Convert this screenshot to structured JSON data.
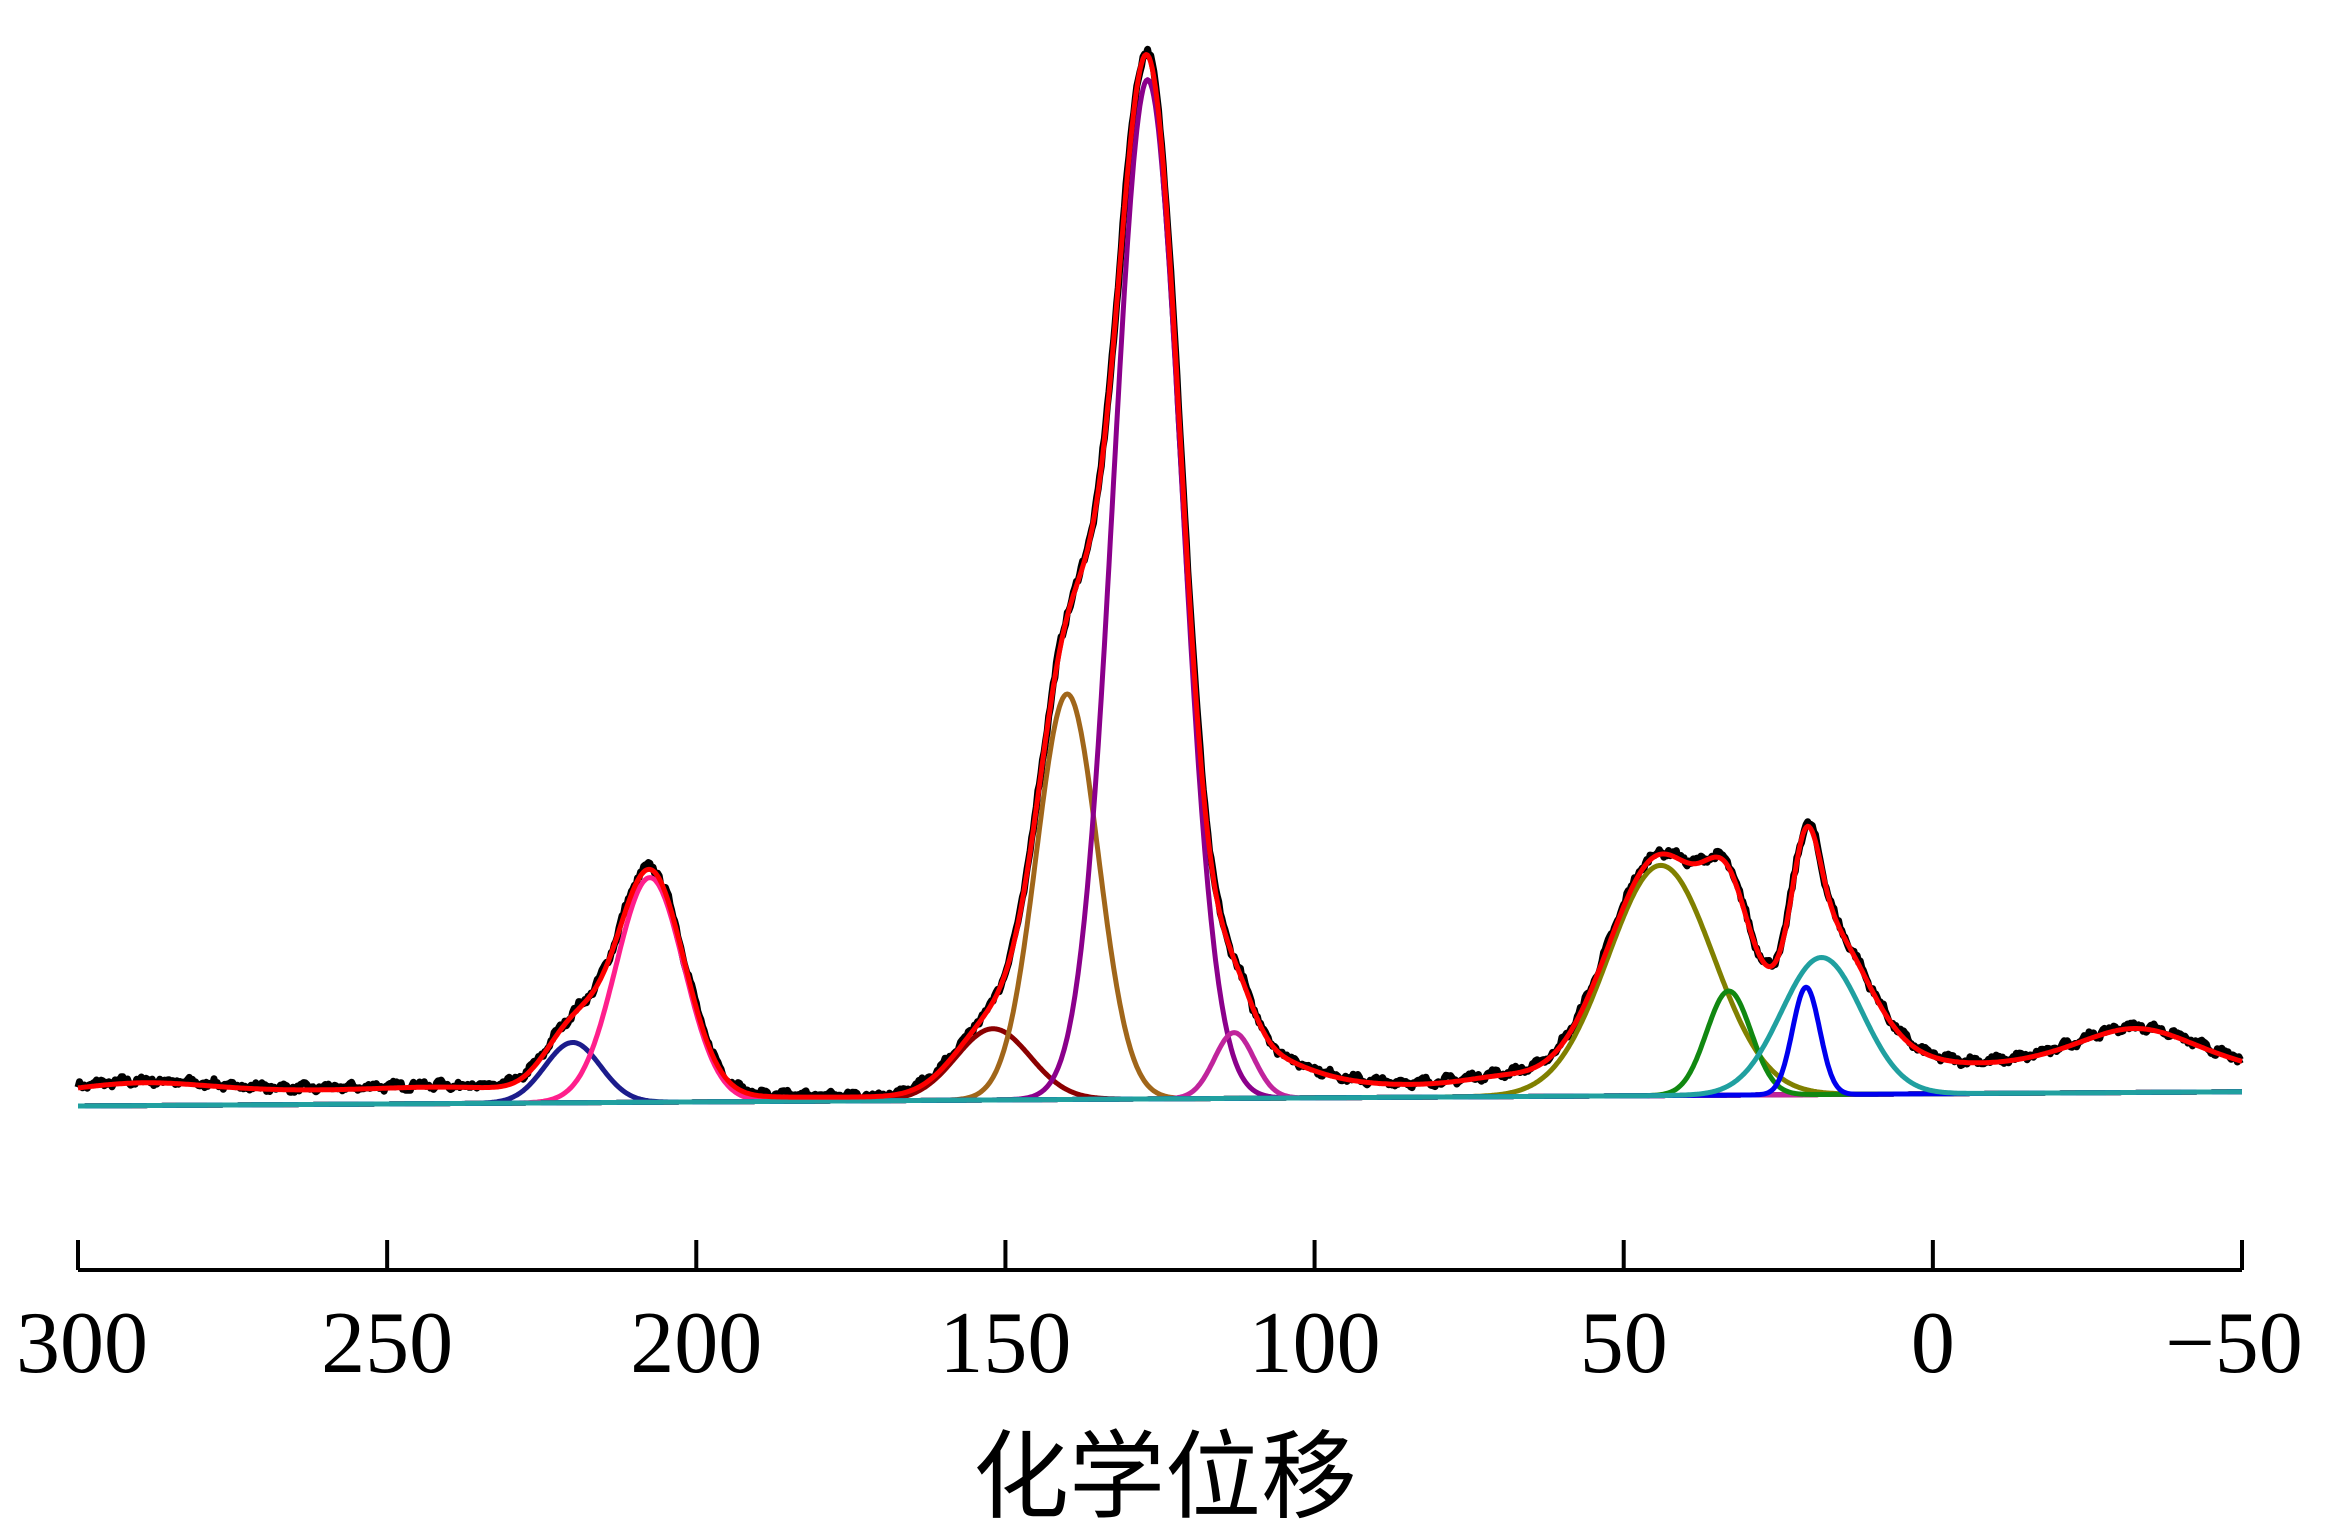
{
  "chart_data": {
    "type": "line",
    "title": "",
    "xlabel": "化学位移",
    "ylabel": "",
    "xlim": [
      300,
      -50
    ],
    "x_reversed": true,
    "ylim": [
      0,
      1.0
    ],
    "grid": false,
    "legend": "none",
    "x_ticks": [
      300,
      250,
      200,
      150,
      100,
      50,
      0,
      -50
    ],
    "x_tick_labels": [
      "300",
      "250",
      "200",
      "150",
      "100",
      "50",
      "0",
      "−50"
    ],
    "baseline": {
      "x": [
        300,
        -50
      ],
      "y": [
        0.0,
        0.013
      ],
      "color": "#3c3c8c"
    },
    "background": [
      {
        "center": 290,
        "amp": 0.018,
        "width": 20
      },
      {
        "center": 240,
        "amp": 0.012,
        "width": 25
      },
      {
        "center": 108,
        "amp": 0.035,
        "width": 10
      },
      {
        "center": 70,
        "amp": 0.012,
        "width": 10
      },
      {
        "center": 10,
        "amp": 0.03,
        "width": 14
      },
      {
        "center": -33,
        "amp": 0.055,
        "width": 16
      }
    ],
    "series": [
      {
        "center": 220,
        "amp": 0.055,
        "width": 4.5,
        "color": "#1c1c8c"
      },
      {
        "center": 207.5,
        "amp": 0.205,
        "width": 5.5,
        "color": "#ff1f8c"
      },
      {
        "center": 152,
        "amp": 0.065,
        "width": 6,
        "color": "#8b0000"
      },
      {
        "center": 140,
        "amp": 0.37,
        "width": 5,
        "color": "#a0661a"
      },
      {
        "center": 127,
        "amp": 0.93,
        "width": 5.5,
        "color": "#8b008b"
      },
      {
        "center": 113,
        "amp": 0.06,
        "width": 3.2,
        "color": "#c0249c"
      },
      {
        "center": 44,
        "amp": 0.21,
        "width": 8.5,
        "color": "#808000"
      },
      {
        "center": 33,
        "amp": 0.095,
        "width": 3.6,
        "color": "#118811"
      },
      {
        "center": 20.5,
        "amp": 0.098,
        "width": 2.2,
        "color": "#0000ee"
      },
      {
        "center": 18,
        "amp": 0.125,
        "width": 6.5,
        "color": "#20a0a0"
      }
    ],
    "fit_color": "#ff0000",
    "experimental_color": "#000000"
  }
}
